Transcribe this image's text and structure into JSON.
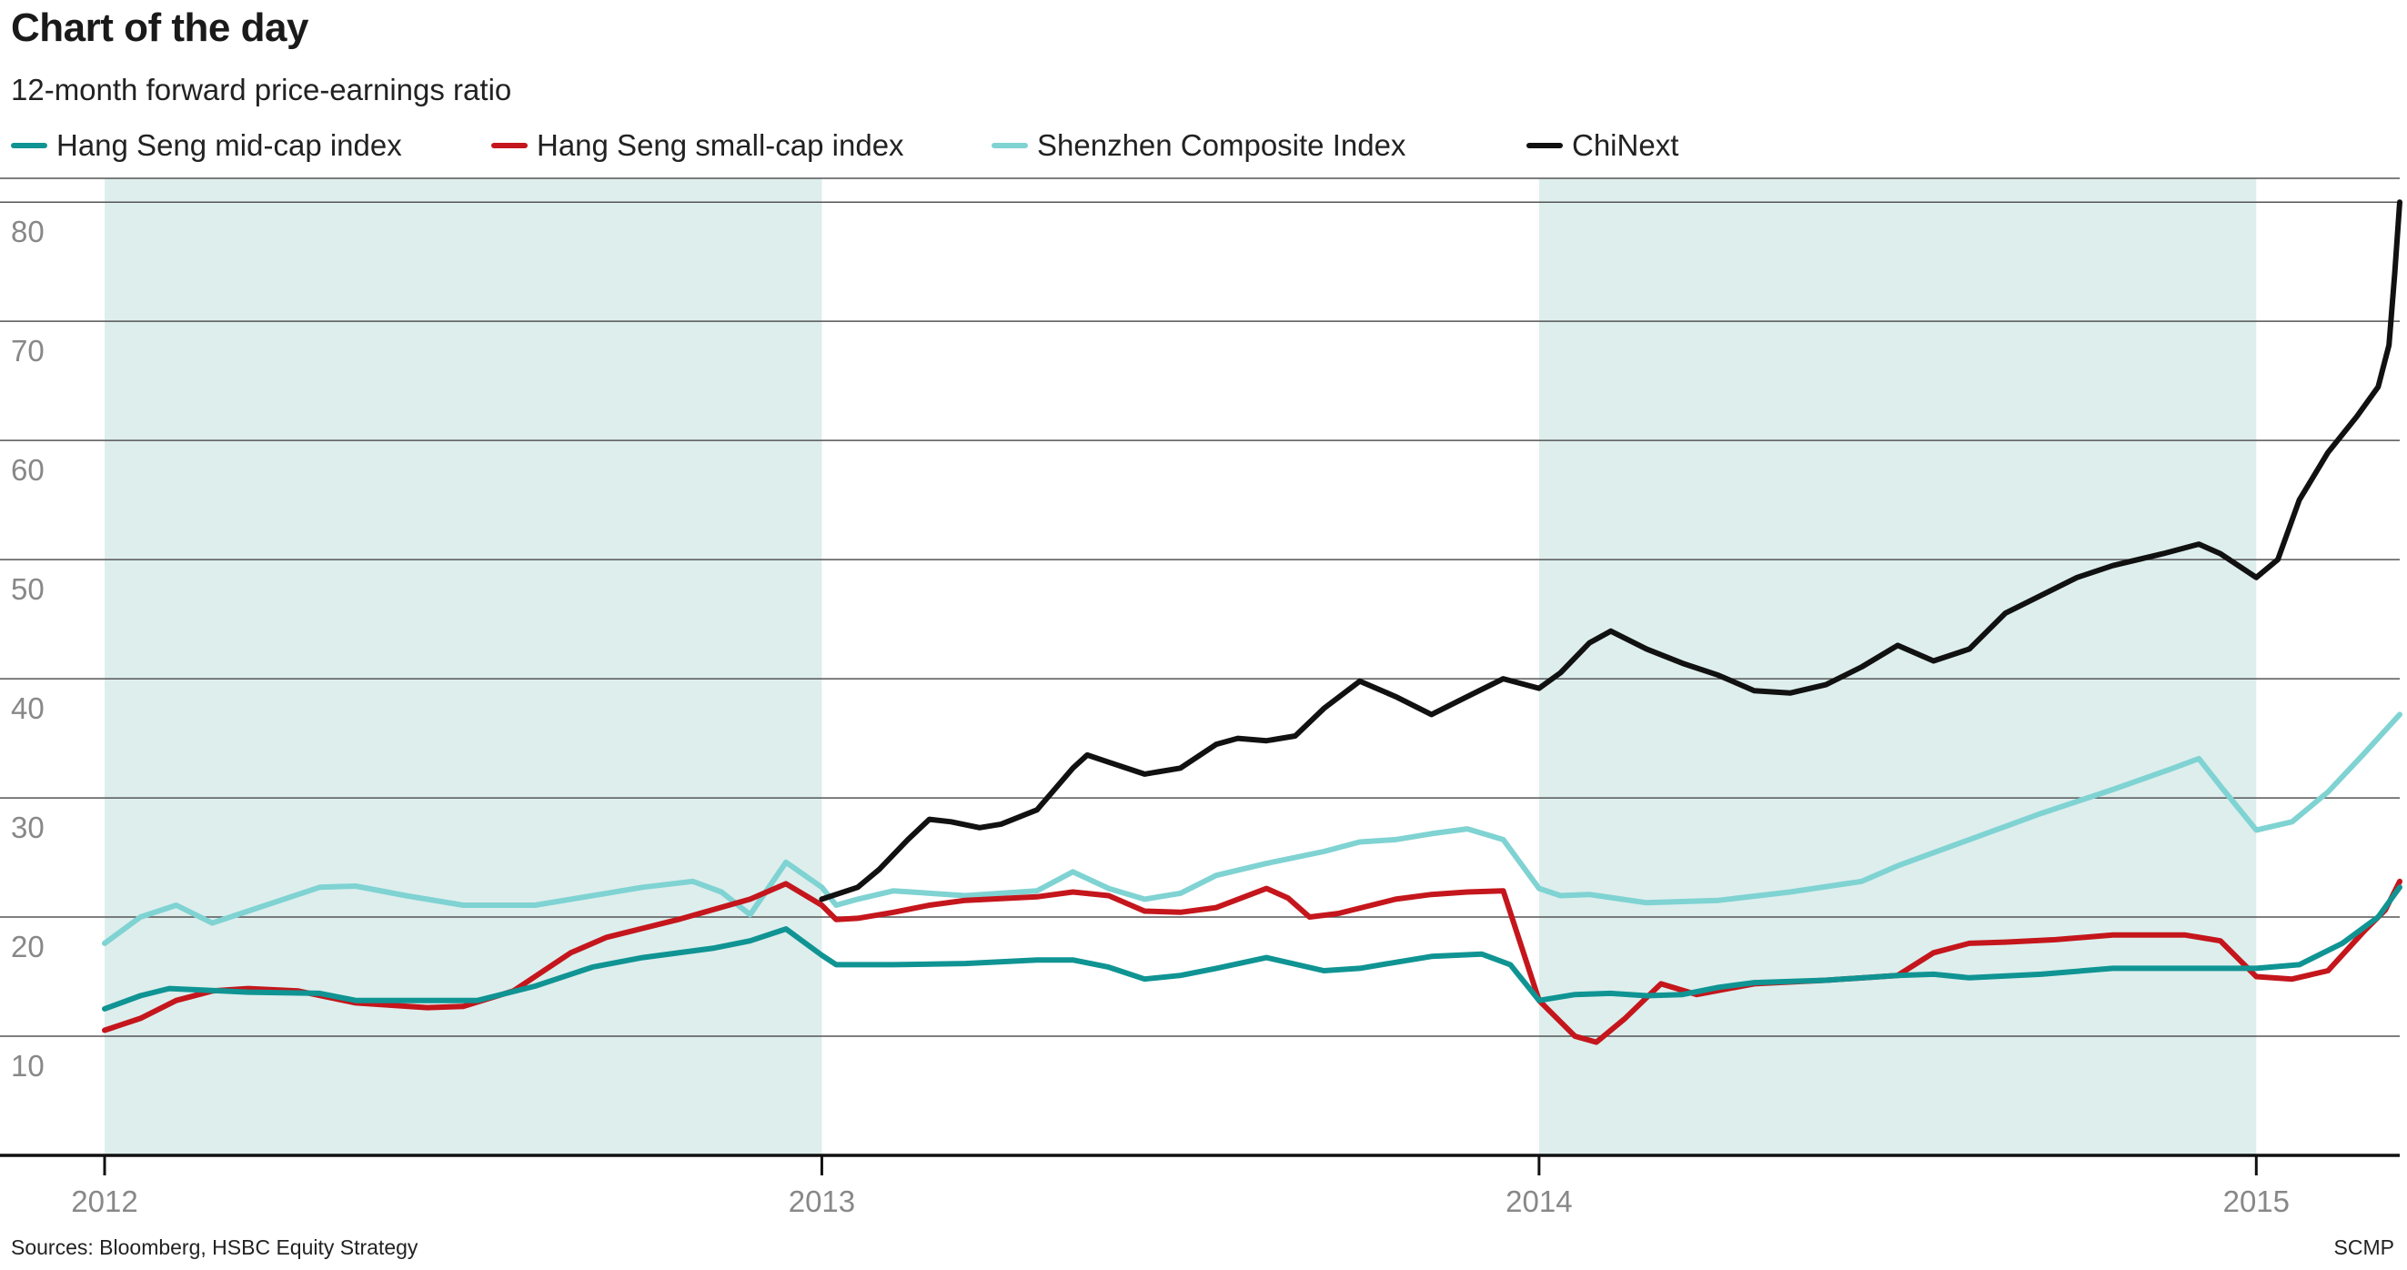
{
  "header": {
    "title": "Chart of the day",
    "subtitle": "12-month forward price-earnings ratio"
  },
  "footer": {
    "source": "Sources: Bloomberg, HSBC Equity Strategy",
    "credit": "SCMP"
  },
  "colors": {
    "band": "#ddeeed",
    "grid": "#555555",
    "axis": "#111111"
  },
  "chart_data": {
    "type": "line",
    "xlabel": "",
    "ylabel": "",
    "x_range": [
      2012.0,
      2015.2
    ],
    "y_range": [
      0,
      82
    ],
    "y_ticks": [
      10,
      20,
      30,
      40,
      50,
      60,
      70,
      80
    ],
    "x_ticks": [
      2012,
      2013,
      2014,
      2015
    ],
    "shaded_periods": [
      [
        2012.0,
        2013.0
      ],
      [
        2014.0,
        2015.0
      ]
    ],
    "grid": "horizontal",
    "legend_position": "top",
    "series": [
      {
        "name": "Hang Seng mid-cap index",
        "color": "#0f9493",
        "points": [
          [
            2012.0,
            12.3
          ],
          [
            2012.05,
            13.4
          ],
          [
            2012.09,
            14.0
          ],
          [
            2012.2,
            13.7
          ],
          [
            2012.3,
            13.6
          ],
          [
            2012.35,
            13.0
          ],
          [
            2012.45,
            13.0
          ],
          [
            2012.52,
            13.0
          ],
          [
            2012.6,
            14.2
          ],
          [
            2012.68,
            15.8
          ],
          [
            2012.75,
            16.6
          ],
          [
            2012.85,
            17.4
          ],
          [
            2012.9,
            18.0
          ],
          [
            2012.95,
            19.0
          ],
          [
            2013.0,
            16.8
          ],
          [
            2013.02,
            16.0
          ],
          [
            2013.1,
            16.0
          ],
          [
            2013.2,
            16.1
          ],
          [
            2013.3,
            16.4
          ],
          [
            2013.35,
            16.4
          ],
          [
            2013.4,
            15.8
          ],
          [
            2013.45,
            14.8
          ],
          [
            2013.5,
            15.1
          ],
          [
            2013.55,
            15.7
          ],
          [
            2013.62,
            16.6
          ],
          [
            2013.7,
            15.5
          ],
          [
            2013.75,
            15.7
          ],
          [
            2013.8,
            16.2
          ],
          [
            2013.85,
            16.7
          ],
          [
            2013.92,
            16.9
          ],
          [
            2013.96,
            16.0
          ],
          [
            2014.0,
            13.0
          ],
          [
            2014.05,
            13.5
          ],
          [
            2014.1,
            13.6
          ],
          [
            2014.15,
            13.4
          ],
          [
            2014.2,
            13.5
          ],
          [
            2014.25,
            14.1
          ],
          [
            2014.3,
            14.5
          ],
          [
            2014.4,
            14.7
          ],
          [
            2014.5,
            15.1
          ],
          [
            2014.55,
            15.2
          ],
          [
            2014.6,
            14.9
          ],
          [
            2014.7,
            15.2
          ],
          [
            2014.8,
            15.7
          ],
          [
            2014.9,
            15.7
          ],
          [
            2015.0,
            15.7
          ],
          [
            2015.06,
            16.0
          ],
          [
            2015.12,
            17.8
          ],
          [
            2015.17,
            20.0
          ],
          [
            2015.2,
            22.5
          ]
        ]
      },
      {
        "name": "Hang Seng small-cap index",
        "color": "#c4161c",
        "points": [
          [
            2012.0,
            10.5
          ],
          [
            2012.05,
            11.5
          ],
          [
            2012.1,
            13.0
          ],
          [
            2012.15,
            13.8
          ],
          [
            2012.2,
            14.0
          ],
          [
            2012.27,
            13.8
          ],
          [
            2012.35,
            12.8
          ],
          [
            2012.45,
            12.4
          ],
          [
            2012.5,
            12.5
          ],
          [
            2012.57,
            13.8
          ],
          [
            2012.65,
            17.0
          ],
          [
            2012.7,
            18.3
          ],
          [
            2012.8,
            19.8
          ],
          [
            2012.9,
            21.5
          ],
          [
            2012.95,
            22.8
          ],
          [
            2013.0,
            21.0
          ],
          [
            2013.02,
            19.8
          ],
          [
            2013.05,
            19.9
          ],
          [
            2013.1,
            20.4
          ],
          [
            2013.15,
            21.0
          ],
          [
            2013.2,
            21.4
          ],
          [
            2013.3,
            21.7
          ],
          [
            2013.35,
            22.1
          ],
          [
            2013.4,
            21.8
          ],
          [
            2013.45,
            20.5
          ],
          [
            2013.5,
            20.4
          ],
          [
            2013.55,
            20.8
          ],
          [
            2013.62,
            22.4
          ],
          [
            2013.65,
            21.6
          ],
          [
            2013.68,
            20.0
          ],
          [
            2013.72,
            20.3
          ],
          [
            2013.8,
            21.5
          ],
          [
            2013.85,
            21.9
          ],
          [
            2013.9,
            22.1
          ],
          [
            2013.95,
            22.2
          ],
          [
            2014.0,
            13.0
          ],
          [
            2014.05,
            10.0
          ],
          [
            2014.08,
            9.5
          ],
          [
            2014.12,
            11.5
          ],
          [
            2014.17,
            14.4
          ],
          [
            2014.22,
            13.5
          ],
          [
            2014.3,
            14.4
          ],
          [
            2014.4,
            14.7
          ],
          [
            2014.5,
            15.1
          ],
          [
            2014.55,
            17.0
          ],
          [
            2014.6,
            17.8
          ],
          [
            2014.65,
            17.9
          ],
          [
            2014.72,
            18.1
          ],
          [
            2014.8,
            18.5
          ],
          [
            2014.9,
            18.5
          ],
          [
            2014.95,
            18.0
          ],
          [
            2015.0,
            15.0
          ],
          [
            2015.05,
            14.8
          ],
          [
            2015.1,
            15.5
          ],
          [
            2015.15,
            18.8
          ],
          [
            2015.18,
            20.6
          ],
          [
            2015.2,
            23.0
          ]
        ]
      },
      {
        "name": "Shenzhen Composite Index",
        "color": "#7fd3d2",
        "points": [
          [
            2012.0,
            17.8
          ],
          [
            2012.05,
            20.0
          ],
          [
            2012.1,
            21.0
          ],
          [
            2012.15,
            19.5
          ],
          [
            2012.2,
            20.5
          ],
          [
            2012.3,
            22.5
          ],
          [
            2012.35,
            22.6
          ],
          [
            2012.42,
            21.8
          ],
          [
            2012.5,
            21.0
          ],
          [
            2012.6,
            21.0
          ],
          [
            2012.7,
            22.0
          ],
          [
            2012.75,
            22.5
          ],
          [
            2012.82,
            23.0
          ],
          [
            2012.86,
            22.1
          ],
          [
            2012.9,
            20.2
          ],
          [
            2012.95,
            24.6
          ],
          [
            2013.0,
            22.5
          ],
          [
            2013.02,
            21.0
          ],
          [
            2013.05,
            21.5
          ],
          [
            2013.1,
            22.2
          ],
          [
            2013.2,
            21.8
          ],
          [
            2013.3,
            22.2
          ],
          [
            2013.35,
            23.8
          ],
          [
            2013.4,
            22.4
          ],
          [
            2013.45,
            21.5
          ],
          [
            2013.5,
            22.0
          ],
          [
            2013.55,
            23.5
          ],
          [
            2013.62,
            24.5
          ],
          [
            2013.7,
            25.5
          ],
          [
            2013.75,
            26.3
          ],
          [
            2013.8,
            26.5
          ],
          [
            2013.85,
            27.0
          ],
          [
            2013.9,
            27.4
          ],
          [
            2013.95,
            26.5
          ],
          [
            2014.0,
            22.4
          ],
          [
            2014.03,
            21.8
          ],
          [
            2014.07,
            21.9
          ],
          [
            2014.15,
            21.2
          ],
          [
            2014.25,
            21.4
          ],
          [
            2014.35,
            22.1
          ],
          [
            2014.45,
            23.0
          ],
          [
            2014.5,
            24.3
          ],
          [
            2014.6,
            26.5
          ],
          [
            2014.7,
            28.7
          ],
          [
            2014.8,
            30.7
          ],
          [
            2014.88,
            32.4
          ],
          [
            2014.92,
            33.3
          ],
          [
            2014.95,
            31.0
          ],
          [
            2015.0,
            27.3
          ],
          [
            2015.05,
            28.0
          ],
          [
            2015.1,
            30.5
          ],
          [
            2015.15,
            33.7
          ],
          [
            2015.2,
            37.0
          ]
        ]
      },
      {
        "name": "ChiNext",
        "color": "#111111",
        "points": [
          [
            2013.0,
            21.5
          ],
          [
            2013.05,
            22.5
          ],
          [
            2013.08,
            24.0
          ],
          [
            2013.12,
            26.5
          ],
          [
            2013.15,
            28.2
          ],
          [
            2013.18,
            28.0
          ],
          [
            2013.22,
            27.5
          ],
          [
            2013.25,
            27.8
          ],
          [
            2013.3,
            29.0
          ],
          [
            2013.35,
            32.5
          ],
          [
            2013.37,
            33.6
          ],
          [
            2013.4,
            33.0
          ],
          [
            2013.45,
            32.0
          ],
          [
            2013.5,
            32.5
          ],
          [
            2013.55,
            34.5
          ],
          [
            2013.58,
            35.0
          ],
          [
            2013.62,
            34.8
          ],
          [
            2013.66,
            35.2
          ],
          [
            2013.7,
            37.5
          ],
          [
            2013.75,
            39.8
          ],
          [
            2013.8,
            38.5
          ],
          [
            2013.85,
            37.0
          ],
          [
            2013.9,
            38.5
          ],
          [
            2013.95,
            40.0
          ],
          [
            2014.0,
            39.2
          ],
          [
            2014.03,
            40.5
          ],
          [
            2014.07,
            43.0
          ],
          [
            2014.1,
            44.0
          ],
          [
            2014.15,
            42.5
          ],
          [
            2014.2,
            41.3
          ],
          [
            2014.25,
            40.3
          ],
          [
            2014.3,
            39.0
          ],
          [
            2014.35,
            38.8
          ],
          [
            2014.4,
            39.5
          ],
          [
            2014.45,
            41.0
          ],
          [
            2014.5,
            42.8
          ],
          [
            2014.55,
            41.5
          ],
          [
            2014.6,
            42.5
          ],
          [
            2014.65,
            45.5
          ],
          [
            2014.7,
            47.0
          ],
          [
            2014.75,
            48.5
          ],
          [
            2014.8,
            49.5
          ],
          [
            2014.87,
            50.5
          ],
          [
            2014.92,
            51.3
          ],
          [
            2014.95,
            50.5
          ],
          [
            2015.0,
            48.5
          ],
          [
            2015.03,
            50.0
          ],
          [
            2015.06,
            55.0
          ],
          [
            2015.1,
            59.0
          ],
          [
            2015.14,
            62.0
          ],
          [
            2015.17,
            64.5
          ],
          [
            2015.185,
            68.0
          ],
          [
            2015.193,
            74.0
          ],
          [
            2015.2,
            80.0
          ]
        ]
      }
    ]
  }
}
